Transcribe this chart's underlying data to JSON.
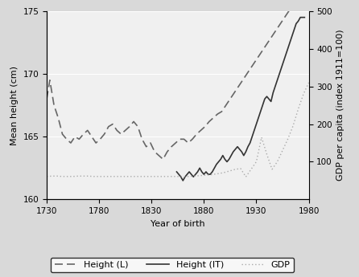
{
  "title": "",
  "xlabel": "Year of birth",
  "ylabel_left": "Mean height (cm)",
  "ylabel_right": "GDP per capita (index 1911=100)",
  "xlim": [
    1730,
    1980
  ],
  "ylim_left": [
    160,
    175
  ],
  "ylim_right": [
    0,
    500
  ],
  "yticks_left": [
    160,
    165,
    170,
    175
  ],
  "yticks_right": [
    100,
    200,
    300,
    400,
    500
  ],
  "xticks": [
    1730,
    1780,
    1830,
    1880,
    1930,
    1980
  ],
  "background_color": "#d9d9d9",
  "plot_bg_color": "#f0f0f0",
  "grid_color": "#ffffff",
  "line_color_L": "#666666",
  "line_color_IT": "#333333",
  "line_color_GDP": "#aaaaaa",
  "height_L": {
    "x": [
      1730,
      1733,
      1737,
      1741,
      1745,
      1749,
      1753,
      1757,
      1761,
      1765,
      1769,
      1773,
      1777,
      1781,
      1785,
      1789,
      1793,
      1797,
      1801,
      1805,
      1809,
      1813,
      1817,
      1821,
      1825,
      1829,
      1833,
      1837,
      1841,
      1845,
      1849,
      1853,
      1857,
      1861,
      1865,
      1869,
      1873,
      1877,
      1881,
      1885,
      1889,
      1893,
      1897,
      1901,
      1905,
      1909,
      1913,
      1917,
      1921,
      1925,
      1929,
      1933,
      1937,
      1941,
      1945,
      1949,
      1953,
      1957,
      1961,
      1965,
      1969,
      1973
    ],
    "y": [
      168.0,
      169.5,
      167.5,
      166.5,
      165.2,
      164.8,
      164.5,
      165.0,
      164.8,
      165.2,
      165.5,
      165.0,
      164.5,
      164.8,
      165.2,
      165.8,
      166.0,
      165.5,
      165.2,
      165.5,
      165.8,
      166.2,
      165.8,
      164.8,
      164.2,
      164.5,
      163.8,
      163.5,
      163.2,
      163.8,
      164.2,
      164.5,
      164.8,
      164.8,
      164.5,
      164.8,
      165.2,
      165.5,
      165.8,
      166.2,
      166.5,
      166.8,
      167.0,
      167.5,
      168.0,
      168.5,
      169.0,
      169.5,
      170.0,
      170.5,
      171.0,
      171.5,
      172.0,
      172.5,
      173.0,
      173.5,
      174.0,
      174.5,
      175.0,
      175.2,
      175.5,
      175.8
    ]
  },
  "height_IT": {
    "x": [
      1854,
      1856,
      1858,
      1860,
      1862,
      1864,
      1866,
      1868,
      1870,
      1872,
      1874,
      1876,
      1878,
      1880,
      1882,
      1884,
      1886,
      1888,
      1890,
      1892,
      1894,
      1896,
      1898,
      1900,
      1902,
      1904,
      1906,
      1908,
      1910,
      1912,
      1914,
      1916,
      1918,
      1920,
      1922,
      1924,
      1926,
      1928,
      1930,
      1932,
      1934,
      1936,
      1938,
      1940,
      1942,
      1944,
      1946,
      1948,
      1950,
      1952,
      1954,
      1956,
      1958,
      1960,
      1962,
      1964,
      1966,
      1968,
      1970,
      1972,
      1974,
      1976
    ],
    "y": [
      162.2,
      162.0,
      161.8,
      161.5,
      161.8,
      162.0,
      162.2,
      162.0,
      161.8,
      162.0,
      162.2,
      162.5,
      162.2,
      162.0,
      162.2,
      162.0,
      162.0,
      162.2,
      162.5,
      162.8,
      163.0,
      163.2,
      163.5,
      163.2,
      163.0,
      163.2,
      163.5,
      163.8,
      164.0,
      164.2,
      164.0,
      163.8,
      163.5,
      163.8,
      164.2,
      164.5,
      165.0,
      165.5,
      166.0,
      166.5,
      167.0,
      167.5,
      168.0,
      168.2,
      168.0,
      167.8,
      168.5,
      169.0,
      169.5,
      170.0,
      170.5,
      171.0,
      171.5,
      172.0,
      172.5,
      173.0,
      173.5,
      174.0,
      174.2,
      174.5,
      174.5,
      174.5
    ]
  },
  "gdp": {
    "x": [
      1730,
      1735,
      1740,
      1745,
      1750,
      1755,
      1760,
      1765,
      1770,
      1775,
      1780,
      1785,
      1790,
      1795,
      1800,
      1805,
      1810,
      1815,
      1820,
      1825,
      1830,
      1835,
      1840,
      1845,
      1850,
      1855,
      1860,
      1865,
      1870,
      1875,
      1880,
      1885,
      1890,
      1895,
      1900,
      1905,
      1910,
      1915,
      1920,
      1925,
      1930,
      1935,
      1940,
      1945,
      1950,
      1955,
      1960,
      1965,
      1970,
      1975,
      1980
    ],
    "y": [
      61,
      62,
      62,
      61,
      61,
      61,
      62,
      62,
      62,
      61,
      61,
      61,
      61,
      61,
      61,
      61,
      61,
      61,
      61,
      61,
      61,
      61,
      61,
      61,
      61,
      61,
      61,
      61,
      62,
      63,
      64,
      65,
      67,
      69,
      72,
      76,
      80,
      82,
      60,
      80,
      100,
      165,
      120,
      80,
      100,
      130,
      160,
      195,
      240,
      280,
      310
    ]
  },
  "legend": [
    {
      "label": "Height (L)",
      "linestyle": "dashed",
      "color": "#777777"
    },
    {
      "label": "Height (IT)",
      "linestyle": "solid",
      "color": "#333333"
    },
    {
      "label": "GDP",
      "linestyle": "dotted",
      "color": "#aaaaaa"
    }
  ]
}
